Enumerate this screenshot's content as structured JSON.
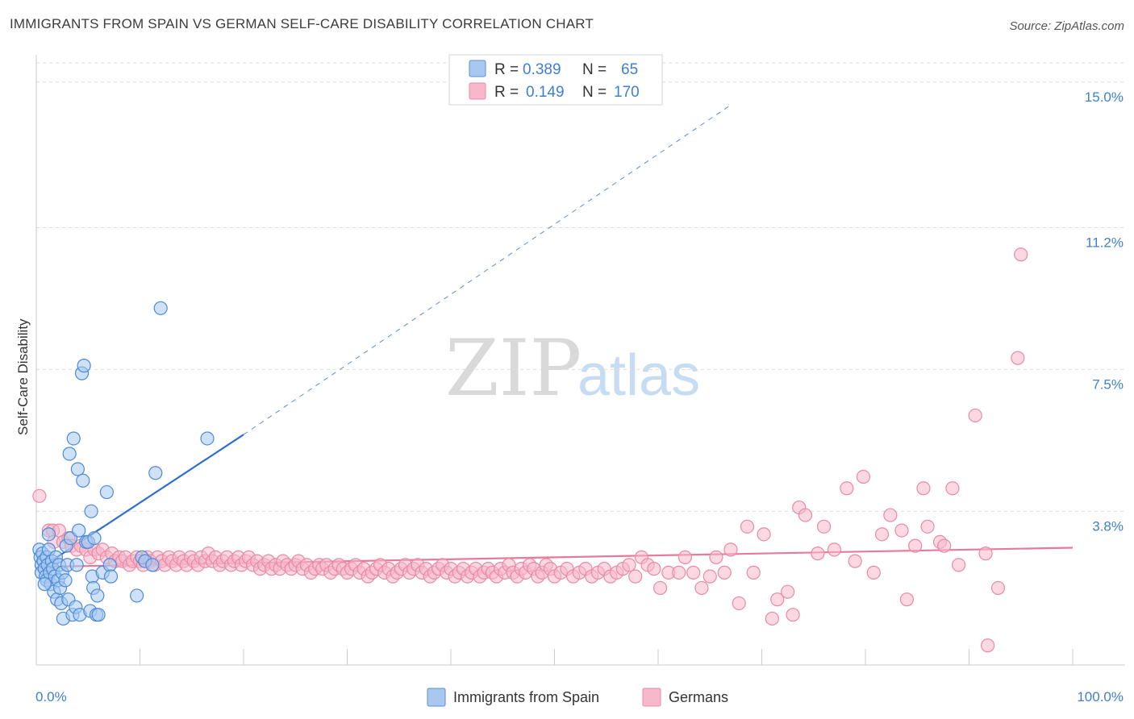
{
  "header": {
    "title": "IMMIGRANTS FROM SPAIN VS GERMAN SELF-CARE DISABILITY CORRELATION CHART",
    "source": "Source: ZipAtlas.com"
  },
  "watermark": {
    "zip": "ZIP",
    "atlas": "atlas"
  },
  "legend_box": {
    "r_label": "R =",
    "n_label": "N =",
    "rows": [
      {
        "r": "0.389",
        "n": "65",
        "fill": "#a8c8f0",
        "stroke": "#5a8fd6"
      },
      {
        "r": "0.149",
        "n": "170",
        "fill": "#f7b8cb",
        "stroke": "#e88aa6"
      }
    ]
  },
  "colors": {
    "blue_point_fill": "#a8c8f0",
    "blue_point_stroke": "#4d8ad8",
    "blue_line": "#2f6fd0",
    "pink_point_fill": "#f7b8cb",
    "pink_point_stroke": "#e88aa6",
    "pink_line": "#e8789c",
    "grid": "#dddddd",
    "tick_label": "#3f7fd0"
  },
  "chart_data": {
    "type": "scatter",
    "title": "IMMIGRANTS FROM SPAIN VS GERMAN SELF-CARE DISABILITY CORRELATION CHART",
    "xlabel": "",
    "ylabel": "Self-Care Disability",
    "xlim": [
      0,
      100
    ],
    "ylim": [
      0,
      15.5
    ],
    "x_tick_labels": [
      {
        "value": 0,
        "label": "0.0%"
      },
      {
        "value": 100,
        "label": "100.0%"
      }
    ],
    "y_ticks": [
      {
        "value": 3.8,
        "label": "3.8%"
      },
      {
        "value": 7.5,
        "label": "7.5%"
      },
      {
        "value": 11.2,
        "label": "11.2%"
      },
      {
        "value": 15.0,
        "label": "15.0%"
      }
    ],
    "x_minor_ticks": [
      10,
      20,
      30,
      40,
      50,
      60,
      70,
      80,
      90,
      100
    ],
    "grid": true,
    "legend_position": "bottom-center",
    "series": [
      {
        "name": "Immigrants from Spain",
        "r": 0.389,
        "n": 65,
        "trend": {
          "x0": 0.3,
          "y0": 2.3,
          "x1": 20,
          "y1": 5.8,
          "dashed_to_x": 67,
          "dashed_to_y": 14.4
        },
        "points": [
          [
            0.3,
            2.8
          ],
          [
            0.4,
            2.6
          ],
          [
            0.5,
            2.4
          ],
          [
            0.5,
            2.2
          ],
          [
            0.6,
            2.7
          ],
          [
            0.7,
            2.5
          ],
          [
            0.8,
            2.3
          ],
          [
            0.9,
            2.1
          ],
          [
            1.0,
            2.6
          ],
          [
            1.0,
            2.0
          ],
          [
            1.1,
            2.4
          ],
          [
            1.2,
            2.8
          ],
          [
            1.3,
            2.2
          ],
          [
            1.4,
            1.9
          ],
          [
            1.5,
            2.5
          ],
          [
            1.6,
            2.3
          ],
          [
            1.7,
            1.7
          ],
          [
            1.8,
            2.1
          ],
          [
            1.9,
            2.6
          ],
          [
            2.0,
            1.5
          ],
          [
            2.1,
            2.0
          ],
          [
            2.2,
            2.4
          ],
          [
            2.3,
            1.8
          ],
          [
            2.4,
            1.4
          ],
          [
            2.5,
            2.2
          ],
          [
            2.6,
            1.0
          ],
          [
            2.8,
            2.0
          ],
          [
            2.9,
            2.9
          ],
          [
            3.0,
            2.4
          ],
          [
            3.1,
            1.5
          ],
          [
            3.2,
            5.3
          ],
          [
            3.3,
            3.1
          ],
          [
            3.5,
            1.1
          ],
          [
            3.6,
            5.7
          ],
          [
            3.8,
            1.3
          ],
          [
            3.9,
            2.4
          ],
          [
            4.0,
            4.9
          ],
          [
            4.1,
            3.3
          ],
          [
            4.2,
            1.1
          ],
          [
            4.4,
            7.4
          ],
          [
            4.5,
            4.6
          ],
          [
            4.6,
            7.6
          ],
          [
            4.8,
            3.0
          ],
          [
            5.0,
            3.0
          ],
          [
            5.2,
            1.2
          ],
          [
            5.3,
            3.8
          ],
          [
            5.4,
            2.1
          ],
          [
            5.5,
            1.8
          ],
          [
            5.6,
            3.1
          ],
          [
            5.8,
            1.1
          ],
          [
            5.9,
            1.6
          ],
          [
            6.0,
            1.1
          ],
          [
            6.4,
            2.2
          ],
          [
            6.8,
            4.3
          ],
          [
            7.1,
            2.4
          ],
          [
            7.2,
            2.1
          ],
          [
            9.7,
            1.6
          ],
          [
            10.2,
            2.6
          ],
          [
            10.5,
            2.5
          ],
          [
            11.2,
            2.4
          ],
          [
            11.5,
            4.8
          ],
          [
            12.0,
            9.1
          ],
          [
            16.5,
            5.7
          ],
          [
            1.2,
            3.2
          ],
          [
            0.8,
            1.9
          ]
        ]
      },
      {
        "name": "Germans",
        "r": 0.149,
        "n": 170,
        "trend": {
          "x0": 0.3,
          "y0": 2.35,
          "x1": 100,
          "y1": 2.85
        },
        "points": [
          [
            0.3,
            4.2
          ],
          [
            1.2,
            3.3
          ],
          [
            1.6,
            3.3
          ],
          [
            1.7,
            3.0
          ],
          [
            2.2,
            3.3
          ],
          [
            2.6,
            3.0
          ],
          [
            3.1,
            3.1
          ],
          [
            3.4,
            2.9
          ],
          [
            3.9,
            2.8
          ],
          [
            4.3,
            2.9
          ],
          [
            4.8,
            2.8
          ],
          [
            5.2,
            2.6
          ],
          [
            5.6,
            2.8
          ],
          [
            6.0,
            2.7
          ],
          [
            6.4,
            2.8
          ],
          [
            6.8,
            2.6
          ],
          [
            7.3,
            2.7
          ],
          [
            7.6,
            2.5
          ],
          [
            8.0,
            2.6
          ],
          [
            8.3,
            2.5
          ],
          [
            8.6,
            2.6
          ],
          [
            9.0,
            2.4
          ],
          [
            9.3,
            2.5
          ],
          [
            9.7,
            2.6
          ],
          [
            10.0,
            2.5
          ],
          [
            10.3,
            2.4
          ],
          [
            10.7,
            2.6
          ],
          [
            11.0,
            2.5
          ],
          [
            11.4,
            2.4
          ],
          [
            11.7,
            2.6
          ],
          [
            12.1,
            2.5
          ],
          [
            12.4,
            2.4
          ],
          [
            12.8,
            2.6
          ],
          [
            13.1,
            2.5
          ],
          [
            13.5,
            2.4
          ],
          [
            13.8,
            2.6
          ],
          [
            14.2,
            2.5
          ],
          [
            14.5,
            2.4
          ],
          [
            14.9,
            2.6
          ],
          [
            15.2,
            2.5
          ],
          [
            15.6,
            2.4
          ],
          [
            15.9,
            2.6
          ],
          [
            16.3,
            2.5
          ],
          [
            16.6,
            2.7
          ],
          [
            17.0,
            2.5
          ],
          [
            17.3,
            2.6
          ],
          [
            17.7,
            2.4
          ],
          [
            18.0,
            2.5
          ],
          [
            18.4,
            2.6
          ],
          [
            18.8,
            2.4
          ],
          [
            19.1,
            2.5
          ],
          [
            19.5,
            2.6
          ],
          [
            19.8,
            2.4
          ],
          [
            20.2,
            2.5
          ],
          [
            20.5,
            2.6
          ],
          [
            20.9,
            2.4
          ],
          [
            21.3,
            2.5
          ],
          [
            21.6,
            2.3
          ],
          [
            22.0,
            2.4
          ],
          [
            22.4,
            2.5
          ],
          [
            22.7,
            2.3
          ],
          [
            23.1,
            2.4
          ],
          [
            23.5,
            2.3
          ],
          [
            23.8,
            2.5
          ],
          [
            24.2,
            2.4
          ],
          [
            24.6,
            2.3
          ],
          [
            25.0,
            2.4
          ],
          [
            25.3,
            2.5
          ],
          [
            25.7,
            2.3
          ],
          [
            26.1,
            2.4
          ],
          [
            26.5,
            2.2
          ],
          [
            26.9,
            2.3
          ],
          [
            27.3,
            2.4
          ],
          [
            27.6,
            2.3
          ],
          [
            28.0,
            2.4
          ],
          [
            28.4,
            2.2
          ],
          [
            28.8,
            2.3
          ],
          [
            29.2,
            2.4
          ],
          [
            29.6,
            2.3
          ],
          [
            30.0,
            2.2
          ],
          [
            30.4,
            2.3
          ],
          [
            30.8,
            2.4
          ],
          [
            31.2,
            2.2
          ],
          [
            31.6,
            2.3
          ],
          [
            32.0,
            2.1
          ],
          [
            32.4,
            2.2
          ],
          [
            32.8,
            2.3
          ],
          [
            33.2,
            2.4
          ],
          [
            33.6,
            2.2
          ],
          [
            34.0,
            2.3
          ],
          [
            34.4,
            2.1
          ],
          [
            34.8,
            2.2
          ],
          [
            35.2,
            2.3
          ],
          [
            35.6,
            2.4
          ],
          [
            36.0,
            2.2
          ],
          [
            36.4,
            2.3
          ],
          [
            36.8,
            2.4
          ],
          [
            37.2,
            2.2
          ],
          [
            37.6,
            2.3
          ],
          [
            38.0,
            2.1
          ],
          [
            38.4,
            2.2
          ],
          [
            38.8,
            2.3
          ],
          [
            39.2,
            2.4
          ],
          [
            39.6,
            2.2
          ],
          [
            40.0,
            2.3
          ],
          [
            40.4,
            2.1
          ],
          [
            40.8,
            2.2
          ],
          [
            41.2,
            2.3
          ],
          [
            41.6,
            2.1
          ],
          [
            42.0,
            2.2
          ],
          [
            42.4,
            2.3
          ],
          [
            42.8,
            2.1
          ],
          [
            43.2,
            2.2
          ],
          [
            43.6,
            2.3
          ],
          [
            44.0,
            2.2
          ],
          [
            44.4,
            2.1
          ],
          [
            44.8,
            2.3
          ],
          [
            45.2,
            2.2
          ],
          [
            45.6,
            2.4
          ],
          [
            46.0,
            2.2
          ],
          [
            46.4,
            2.1
          ],
          [
            46.8,
            2.3
          ],
          [
            47.2,
            2.2
          ],
          [
            47.6,
            2.4
          ],
          [
            48.0,
            2.3
          ],
          [
            48.4,
            2.1
          ],
          [
            48.8,
            2.2
          ],
          [
            49.2,
            2.4
          ],
          [
            49.6,
            2.3
          ],
          [
            50.0,
            2.1
          ],
          [
            50.6,
            2.2
          ],
          [
            51.2,
            2.3
          ],
          [
            51.8,
            2.1
          ],
          [
            52.4,
            2.2
          ],
          [
            53.0,
            2.3
          ],
          [
            53.6,
            2.1
          ],
          [
            54.2,
            2.2
          ],
          [
            54.8,
            2.3
          ],
          [
            55.4,
            2.1
          ],
          [
            56.0,
            2.2
          ],
          [
            56.6,
            2.3
          ],
          [
            57.2,
            2.4
          ],
          [
            57.8,
            2.1
          ],
          [
            58.4,
            2.6
          ],
          [
            59.0,
            2.4
          ],
          [
            59.6,
            2.3
          ],
          [
            60.2,
            1.8
          ],
          [
            61.0,
            2.2
          ],
          [
            62.0,
            2.2
          ],
          [
            62.6,
            2.6
          ],
          [
            63.4,
            2.2
          ],
          [
            64.2,
            1.8
          ],
          [
            65.0,
            2.1
          ],
          [
            65.6,
            2.6
          ],
          [
            66.4,
            2.2
          ],
          [
            67.0,
            2.8
          ],
          [
            67.8,
            1.4
          ],
          [
            68.6,
            3.4
          ],
          [
            69.2,
            2.2
          ],
          [
            70.2,
            3.2
          ],
          [
            71.0,
            1.0
          ],
          [
            71.5,
            1.5
          ],
          [
            72.5,
            1.7
          ],
          [
            73.0,
            1.1
          ],
          [
            73.6,
            3.9
          ],
          [
            74.2,
            3.7
          ],
          [
            75.4,
            2.7
          ],
          [
            76.0,
            3.4
          ],
          [
            77.0,
            2.8
          ],
          [
            78.2,
            4.4
          ],
          [
            79.0,
            2.5
          ],
          [
            79.8,
            4.7
          ],
          [
            80.8,
            2.2
          ],
          [
            81.6,
            3.2
          ],
          [
            82.4,
            3.7
          ],
          [
            83.5,
            3.3
          ],
          [
            84.0,
            1.5
          ],
          [
            84.8,
            2.9
          ],
          [
            85.6,
            4.4
          ],
          [
            86.0,
            3.4
          ],
          [
            87.2,
            3.0
          ],
          [
            87.6,
            2.9
          ],
          [
            88.4,
            4.4
          ],
          [
            89.0,
            2.4
          ],
          [
            90.6,
            6.3
          ],
          [
            91.6,
            2.7
          ],
          [
            92.8,
            1.8
          ],
          [
            94.7,
            7.8
          ],
          [
            95.0,
            10.5
          ],
          [
            91.8,
            0.3
          ]
        ]
      }
    ]
  },
  "bottom_legend": [
    {
      "label": "Immigrants from Spain",
      "fill": "#a8c8f0",
      "stroke": "#5a8fd6"
    },
    {
      "label": "Germans",
      "fill": "#f7b8cb",
      "stroke": "#e88aa6"
    }
  ]
}
